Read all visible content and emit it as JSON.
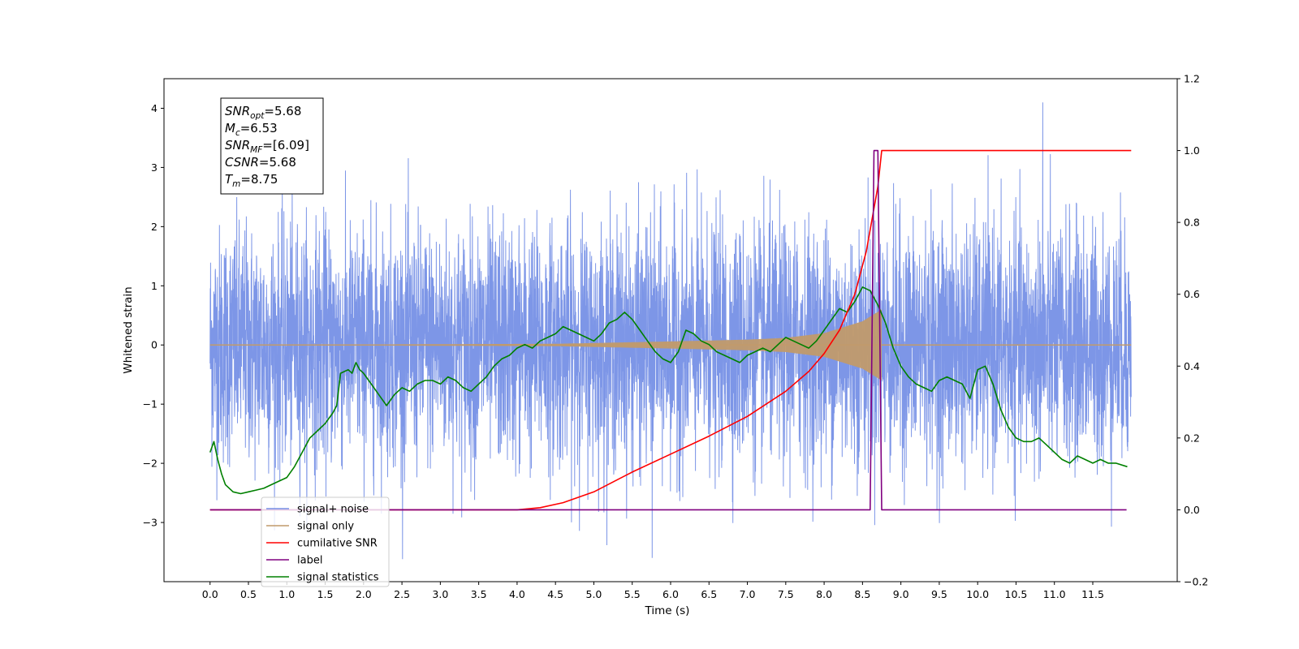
{
  "chart_data": {
    "type": "line",
    "xlabel": "Time (s)",
    "ylabel": "Whitened strain",
    "xlim": [
      -0.6,
      12.6
    ],
    "ylim": [
      -4.0,
      4.5
    ],
    "ylim_right": [
      -0.2,
      1.2
    ],
    "grid": false,
    "legend_position": "lower-left",
    "x_ticks": [
      "0.0",
      "0.5",
      "1.0",
      "1.5",
      "2.0",
      "2.5",
      "3.0",
      "3.5",
      "4.0",
      "4.5",
      "5.0",
      "5.5",
      "6.0",
      "6.5",
      "7.0",
      "7.5",
      "8.0",
      "8.5",
      "9.0",
      "9.5",
      "10.0",
      "10.5",
      "11.0",
      "11.5"
    ],
    "y_ticks": [
      "−3",
      "−2",
      "−1",
      "0",
      "1",
      "2",
      "3",
      "4"
    ],
    "y_ticks_right": [
      "−0.2",
      "0.0",
      "0.2",
      "0.4",
      "0.6",
      "0.8",
      "1.0",
      "1.2"
    ],
    "stats_box": [
      {
        "sym": "SNR",
        "sub": "opt",
        "rest": "=5.68"
      },
      {
        "sym": "M",
        "sub": "c",
        "rest": "=6.53"
      },
      {
        "sym": "SNR",
        "sub": "MF",
        "rest": "=[6.09]"
      },
      {
        "sym": "CSNR",
        "sub": "",
        "rest": "=5.68"
      },
      {
        "sym": "T",
        "sub": "m",
        "rest": "=8.75"
      }
    ],
    "series": [
      {
        "name": "signal+ noise",
        "color": "#7690e6",
        "axis": "left",
        "style": "noise",
        "x_range": [
          0.0,
          12.0
        ],
        "amplitude_std": 1.0,
        "y_min": -3.6,
        "y_max": 4.1
      },
      {
        "name": "signal only",
        "color": "#c19a6b",
        "axis": "left",
        "style": "chirp",
        "x_range": [
          0.0,
          12.0
        ],
        "envelope": {
          "x": [
            0.0,
            4.5,
            6.0,
            7.0,
            7.5,
            8.0,
            8.5,
            8.75
          ],
          "y": [
            0.0,
            0.02,
            0.06,
            0.09,
            0.12,
            0.2,
            0.4,
            0.6
          ]
        }
      },
      {
        "name": "cumilative SNR",
        "color": "#ff0000",
        "axis": "right",
        "x": [
          0.0,
          3.5,
          4.0,
          4.3,
          4.6,
          5.0,
          5.5,
          6.0,
          6.5,
          7.0,
          7.5,
          7.8,
          8.0,
          8.2,
          8.4,
          8.55,
          8.7,
          8.75,
          12.0
        ],
        "y": [
          0.0,
          0.0,
          0.0,
          0.006,
          0.02,
          0.05,
          0.105,
          0.155,
          0.205,
          0.26,
          0.33,
          0.385,
          0.435,
          0.5,
          0.6,
          0.72,
          0.9,
          1.0,
          1.0
        ]
      },
      {
        "name": "label",
        "color": "#800080",
        "axis": "right",
        "x": [
          0.0,
          8.6,
          8.65,
          8.7,
          8.75,
          11.94
        ],
        "y": [
          0.0,
          0.0,
          1.0,
          1.0,
          0.0,
          0.0
        ]
      },
      {
        "name": "signal statistics",
        "color": "#008000",
        "axis": "right",
        "x": [
          0.0,
          0.05,
          0.1,
          0.15,
          0.2,
          0.3,
          0.4,
          0.5,
          0.6,
          0.7,
          0.8,
          0.9,
          1.0,
          1.1,
          1.2,
          1.3,
          1.4,
          1.5,
          1.6,
          1.65,
          1.7,
          1.8,
          1.85,
          1.9,
          1.95,
          2.0,
          2.1,
          2.2,
          2.3,
          2.4,
          2.5,
          2.6,
          2.7,
          2.8,
          2.9,
          3.0,
          3.1,
          3.2,
          3.3,
          3.4,
          3.5,
          3.6,
          3.7,
          3.8,
          3.9,
          4.0,
          4.1,
          4.2,
          4.3,
          4.4,
          4.5,
          4.6,
          4.7,
          4.8,
          4.9,
          5.0,
          5.1,
          5.2,
          5.3,
          5.4,
          5.5,
          5.6,
          5.7,
          5.8,
          5.9,
          6.0,
          6.1,
          6.2,
          6.3,
          6.4,
          6.5,
          6.6,
          6.7,
          6.8,
          6.9,
          7.0,
          7.1,
          7.2,
          7.3,
          7.4,
          7.5,
          7.6,
          7.7,
          7.8,
          7.9,
          8.0,
          8.1,
          8.2,
          8.3,
          8.4,
          8.5,
          8.6,
          8.7,
          8.8,
          8.9,
          9.0,
          9.1,
          9.2,
          9.3,
          9.4,
          9.5,
          9.6,
          9.7,
          9.8,
          9.9,
          10.0,
          10.1,
          10.2,
          10.3,
          10.4,
          10.5,
          10.6,
          10.7,
          10.8,
          10.9,
          11.0,
          11.1,
          11.2,
          11.3,
          11.4,
          11.5,
          11.6,
          11.7,
          11.8,
          11.95
        ],
        "y": [
          0.16,
          0.19,
          0.14,
          0.1,
          0.07,
          0.05,
          0.045,
          0.05,
          0.055,
          0.06,
          0.07,
          0.08,
          0.09,
          0.12,
          0.16,
          0.2,
          0.22,
          0.24,
          0.27,
          0.29,
          0.38,
          0.39,
          0.38,
          0.41,
          0.39,
          0.38,
          0.35,
          0.32,
          0.29,
          0.32,
          0.34,
          0.33,
          0.35,
          0.36,
          0.36,
          0.35,
          0.37,
          0.36,
          0.34,
          0.33,
          0.35,
          0.37,
          0.4,
          0.42,
          0.43,
          0.45,
          0.46,
          0.45,
          0.47,
          0.48,
          0.49,
          0.51,
          0.5,
          0.49,
          0.48,
          0.47,
          0.49,
          0.52,
          0.53,
          0.55,
          0.53,
          0.5,
          0.47,
          0.44,
          0.42,
          0.41,
          0.44,
          0.5,
          0.49,
          0.47,
          0.46,
          0.44,
          0.43,
          0.42,
          0.41,
          0.43,
          0.44,
          0.45,
          0.44,
          0.46,
          0.48,
          0.47,
          0.46,
          0.45,
          0.47,
          0.5,
          0.53,
          0.56,
          0.55,
          0.58,
          0.62,
          0.61,
          0.57,
          0.52,
          0.45,
          0.4,
          0.37,
          0.35,
          0.34,
          0.33,
          0.36,
          0.37,
          0.36,
          0.35,
          0.31,
          0.39,
          0.4,
          0.35,
          0.28,
          0.23,
          0.2,
          0.19,
          0.19,
          0.2,
          0.18,
          0.16,
          0.14,
          0.13,
          0.15,
          0.14,
          0.13,
          0.14,
          0.13,
          0.13,
          0.12
        ]
      }
    ]
  }
}
